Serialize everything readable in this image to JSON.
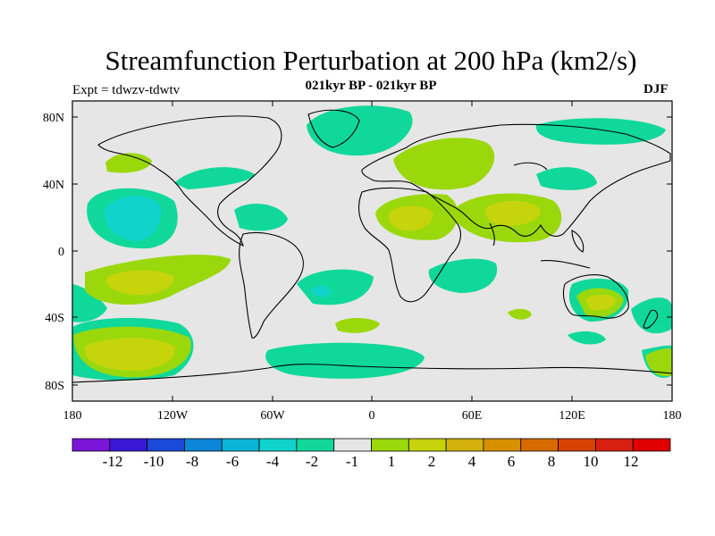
{
  "title": "Streamfunction Perturbation at 200 hPa (km2/s)",
  "subtitle": "021kyr BP - 021kyr BP",
  "left_label": "Expt = tdwzv-tdwtv",
  "right_label": "DJF",
  "axes": {
    "y_ticks": [
      "80N",
      "40N",
      "0",
      "40S",
      "80S"
    ],
    "x_ticks": [
      "180",
      "120W",
      "60W",
      "0",
      "60E",
      "120E",
      "180"
    ]
  },
  "colorbar": {
    "colors": [
      "#7b16d8",
      "#3a18d8",
      "#1a4ad8",
      "#0c86d8",
      "#0cb4d8",
      "#10d4cc",
      "#10d89a",
      "#e6e6e6",
      "#9ad80c",
      "#c6d40c",
      "#d4b00c",
      "#d89000",
      "#d86a00",
      "#d84400",
      "#d82010",
      "#e00000"
    ],
    "labels": [
      "-12",
      "-10",
      "-8",
      "-6",
      "-4",
      "-2",
      "-1",
      "1",
      "2",
      "4",
      "6",
      "8",
      "10",
      "12"
    ]
  },
  "field_colors": {
    "background": "#e6e6e6",
    "neg_1": "#10d89a",
    "neg_2": "#10d4cc",
    "pos_1": "#9ad80c",
    "pos_2": "#c6d40c"
  }
}
